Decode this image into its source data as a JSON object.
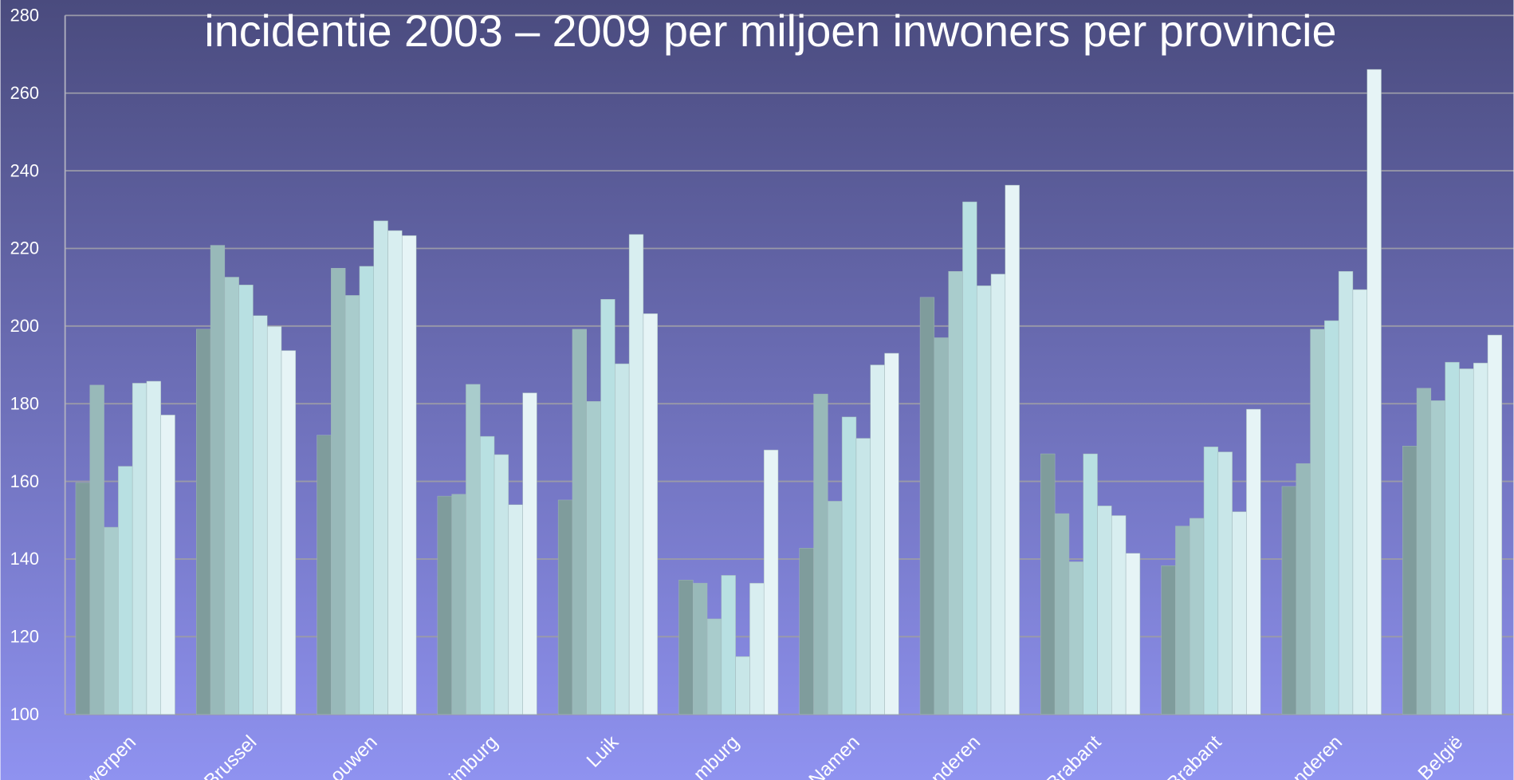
{
  "chart_data": {
    "type": "bar",
    "title": "incidentie 2003 – 2009 per miljoen inwoners per provincie",
    "categories": [
      "werpen",
      "Brussel",
      "ouwen",
      "imburg",
      "Luik",
      "mburg",
      "Namen",
      "nderen",
      "Brabant",
      "Brabant",
      "nderen",
      "België"
    ],
    "series": [
      {
        "color": "#7f9c9c",
        "values": [
          159.7,
          199.2,
          171.9,
          156.2,
          155.2,
          134.6,
          142.8,
          207.4,
          167.1,
          138.3,
          158.7,
          169.1
        ]
      },
      {
        "color": "#98b9b9",
        "values": [
          184.8,
          220.8,
          214.9,
          156.7,
          199.2,
          133.8,
          182.5,
          197.0,
          151.7,
          148.5,
          164.6,
          184.0
        ]
      },
      {
        "color": "#a9cccc",
        "values": [
          148.2,
          212.6,
          207.9,
          185.0,
          180.6,
          124.6,
          154.9,
          214.1,
          139.3,
          150.5,
          199.2,
          180.8
        ]
      },
      {
        "color": "#b8e0e2",
        "values": [
          163.9,
          210.6,
          215.4,
          171.6,
          206.9,
          135.8,
          176.6,
          232.0,
          167.1,
          168.9,
          201.4,
          190.7
        ]
      },
      {
        "color": "#c8e6e8",
        "values": [
          185.3,
          202.7,
          227.1,
          166.9,
          190.3,
          114.9,
          171.1,
          210.4,
          153.7,
          167.6,
          214.1,
          189.0
        ]
      },
      {
        "color": "#d8eef0",
        "values": [
          185.8,
          199.9,
          224.6,
          154.0,
          223.6,
          133.8,
          190.0,
          213.4,
          151.2,
          152.2,
          209.4,
          190.5
        ]
      },
      {
        "color": "#e6f4f6",
        "values": [
          177.1,
          193.7,
          223.3,
          182.8,
          203.2,
          168.1,
          193.0,
          236.3,
          141.5,
          178.6,
          266.1,
          197.7
        ]
      }
    ],
    "ylim": [
      100,
      280
    ],
    "yticks": [
      100,
      120,
      140,
      160,
      180,
      200,
      220,
      240,
      260,
      280
    ],
    "grid": true
  }
}
